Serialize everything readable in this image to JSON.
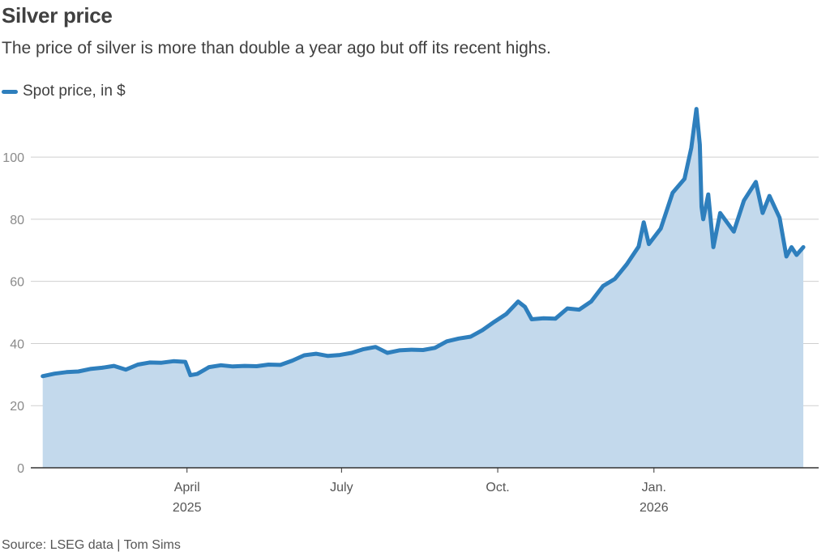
{
  "header": {
    "title": "Silver price",
    "subtitle": "The price of silver is more than double a year ago but off its recent highs."
  },
  "legend": {
    "label": "Spot price, in $"
  },
  "footer": {
    "source": "Source: LSEG data | Tom Sims"
  },
  "colors": {
    "line": "#2e7fbd",
    "area": "#c3d9ec",
    "grid": "#cfcfcf",
    "axis": "#333333"
  },
  "chart_data": {
    "type": "area",
    "title": "Silver price",
    "series": [
      {
        "name": "Spot price, in $",
        "x": [
          "2025-01-06",
          "2025-01-13",
          "2025-01-20",
          "2025-01-27",
          "2025-02-03",
          "2025-02-10",
          "2025-02-17",
          "2025-02-24",
          "2025-03-03",
          "2025-03-10",
          "2025-03-17",
          "2025-03-24",
          "2025-03-31",
          "2025-04-03",
          "2025-04-07",
          "2025-04-14",
          "2025-04-21",
          "2025-04-28",
          "2025-05-05",
          "2025-05-12",
          "2025-05-19",
          "2025-05-26",
          "2025-06-02",
          "2025-06-09",
          "2025-06-16",
          "2025-06-23",
          "2025-06-30",
          "2025-07-07",
          "2025-07-14",
          "2025-07-21",
          "2025-07-28",
          "2025-08-04",
          "2025-08-11",
          "2025-08-18",
          "2025-08-25",
          "2025-09-01",
          "2025-09-08",
          "2025-09-15",
          "2025-09-22",
          "2025-09-29",
          "2025-10-06",
          "2025-10-13",
          "2025-10-17",
          "2025-10-21",
          "2025-10-28",
          "2025-11-04",
          "2025-11-11",
          "2025-11-18",
          "2025-11-25",
          "2025-12-02",
          "2025-12-09",
          "2025-12-16",
          "2025-12-23",
          "2025-12-26",
          "2025-12-29",
          "2026-01-05",
          "2026-01-12",
          "2026-01-19",
          "2026-01-23",
          "2026-01-26",
          "2026-01-28",
          "2026-01-29",
          "2026-01-30",
          "2026-02-02",
          "2026-02-05",
          "2026-02-09",
          "2026-02-13",
          "2026-02-17",
          "2026-02-23",
          "2026-03-02",
          "2026-03-06",
          "2026-03-10",
          "2026-03-16",
          "2026-03-20",
          "2026-03-23",
          "2026-03-26",
          "2026-03-30"
        ],
        "values": [
          29.5,
          30.3,
          30.8,
          31.0,
          31.8,
          32.2,
          32.8,
          31.6,
          33.2,
          33.9,
          33.8,
          34.3,
          34.1,
          29.8,
          30.2,
          32.4,
          33.0,
          32.6,
          32.8,
          32.7,
          33.2,
          33.1,
          34.5,
          36.2,
          36.7,
          36.0,
          36.3,
          37.0,
          38.2,
          38.9,
          37.0,
          37.8,
          38.0,
          37.9,
          38.6,
          40.7,
          41.6,
          42.2,
          44.3,
          47.0,
          49.5,
          53.5,
          51.8,
          47.8,
          48.1,
          48.0,
          51.3,
          50.9,
          53.5,
          58.5,
          60.8,
          65.5,
          71.2,
          79.0,
          72.0,
          77.0,
          88.5,
          93.0,
          103.0,
          115.5,
          104.0,
          84.0,
          80.0,
          88.0,
          71.0,
          82.0,
          79.0,
          76.0,
          86.0,
          92.0,
          82.0,
          87.5,
          80.5,
          68.0,
          71.0,
          68.5,
          71.0
        ]
      }
    ],
    "x_axis": {
      "ticks": [
        {
          "date": "2025-04-01",
          "label": "April",
          "sublabel": "2025"
        },
        {
          "date": "2025-07-01",
          "label": "July",
          "sublabel": ""
        },
        {
          "date": "2025-10-01",
          "label": "Oct.",
          "sublabel": ""
        },
        {
          "date": "2026-01-01",
          "label": "Jan.",
          "sublabel": "2026"
        }
      ],
      "range": [
        "2024-12-30",
        "2026-04-08"
      ]
    },
    "y_axis": {
      "ticks": [
        0,
        20,
        40,
        60,
        80,
        100
      ],
      "range": [
        0,
        118
      ]
    },
    "grid": true
  }
}
